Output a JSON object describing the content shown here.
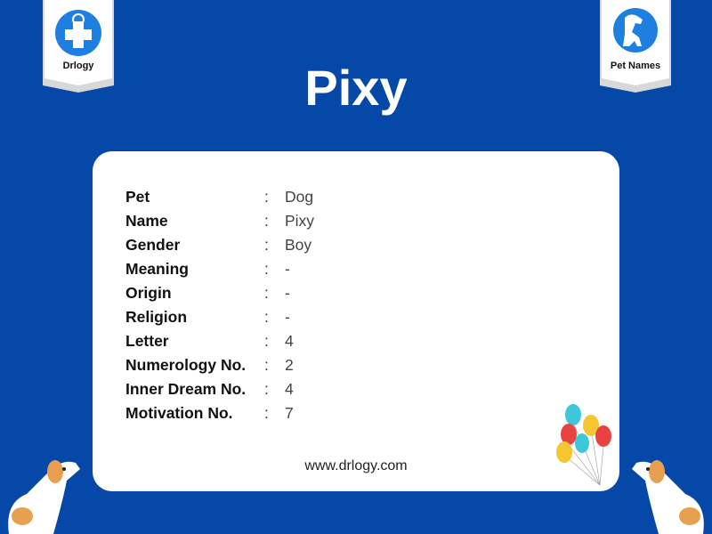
{
  "badges": {
    "left": {
      "label": "Drlogy",
      "icon": "stethoscope-cross-icon"
    },
    "right": {
      "label": "Pet Names",
      "icon": "dog-cat-icon"
    }
  },
  "title": "Pixy",
  "rows": [
    {
      "label": "Pet",
      "value": "Dog"
    },
    {
      "label": "Name",
      "value": "Pixy"
    },
    {
      "label": "Gender",
      "value": "Boy"
    },
    {
      "label": "Meaning",
      "value": "-"
    },
    {
      "label": "Origin",
      "value": "-"
    },
    {
      "label": "Religion",
      "value": "-"
    },
    {
      "label": "Letter",
      "value": "4"
    },
    {
      "label": "Numerology No.",
      "value": "2"
    },
    {
      "label": "Inner Dream No.",
      "value": "4"
    },
    {
      "label": "Motivation No.",
      "value": "7"
    }
  ],
  "separator": ":",
  "website": "www.drlogy.com",
  "colors": {
    "background": "#0648a7",
    "card": "#ffffff",
    "badge_circle": "#1e7fe0"
  }
}
